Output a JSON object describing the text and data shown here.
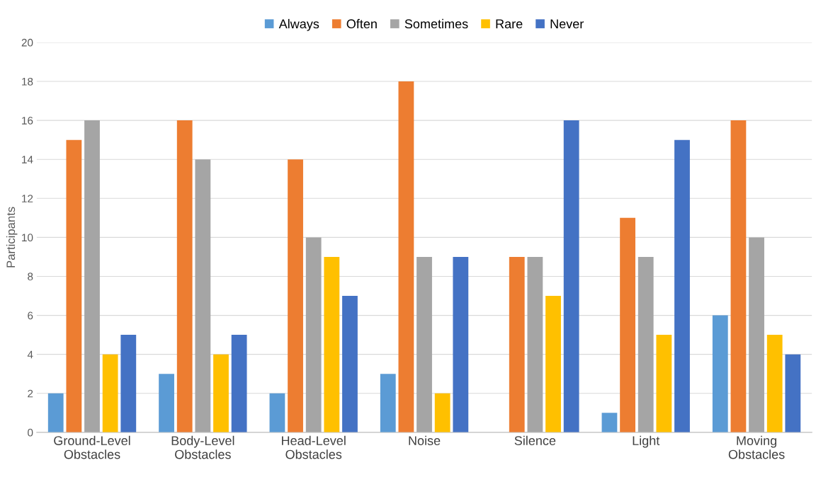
{
  "chart_data": {
    "type": "bar",
    "ylabel": "Participants",
    "categories": [
      "Ground-Level\nObstacles",
      "Body-Level\nObstacles",
      "Head-Level\nObstacles",
      "Noise",
      "Silence",
      "Light",
      "Moving\nObstacles"
    ],
    "series": [
      {
        "name": "Always",
        "color": "#5b9bd5",
        "values": [
          2,
          3,
          2,
          3,
          0,
          1,
          6
        ]
      },
      {
        "name": "Often",
        "color": "#ed7d31",
        "values": [
          15,
          16,
          14,
          18,
          9,
          11,
          16
        ]
      },
      {
        "name": "Sometimes",
        "color": "#a5a5a5",
        "values": [
          16,
          14,
          10,
          9,
          9,
          9,
          10
        ]
      },
      {
        "name": "Rare",
        "color": "#ffc000",
        "values": [
          4,
          4,
          9,
          2,
          7,
          5,
          5
        ]
      },
      {
        "name": "Never",
        "color": "#4472c4",
        "values": [
          5,
          5,
          7,
          9,
          16,
          15,
          4
        ]
      }
    ],
    "ylim": [
      0,
      20
    ],
    "yticks": [
      0,
      2,
      4,
      6,
      8,
      10,
      12,
      14,
      16,
      18,
      20
    ],
    "grid": "y",
    "legend": "top"
  }
}
